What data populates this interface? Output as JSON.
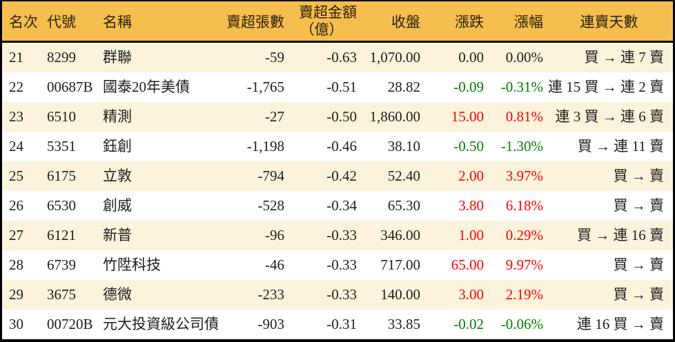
{
  "colors": {
    "header_bg": "#f6be4e",
    "row_odd": "#fcf3dc",
    "row_even": "#ffffff",
    "border": "#000000",
    "text": "#1d1d1d",
    "up_red": "#fe0000",
    "down_green": "#007d00"
  },
  "table": {
    "columns": {
      "rank": "名次",
      "code": "代號",
      "name": "名稱",
      "sell_lots": "賣超張數",
      "sell_amount_line1": "賣超金額",
      "sell_amount_line2": "（億）",
      "close": "收盤",
      "change": "漲跌",
      "change_pct": "漲幅",
      "streak": "連賣天數"
    },
    "rows": [
      {
        "rank": "21",
        "code": "8299",
        "name": "群聯",
        "sell_lots": "-59",
        "sell_amount": "-0.63",
        "close": "1,070.00",
        "change": "0.00",
        "change_pct": "0.00%",
        "trend": "flat",
        "streak": "買 → 連 7 賣"
      },
      {
        "rank": "22",
        "code": "00687B",
        "name": "國泰20年美債",
        "sell_lots": "-1,765",
        "sell_amount": "-0.51",
        "close": "28.82",
        "change": "-0.09",
        "change_pct": "-0.31%",
        "trend": "down",
        "streak": "連 15 買 → 連 2 賣"
      },
      {
        "rank": "23",
        "code": "6510",
        "name": "精測",
        "sell_lots": "-27",
        "sell_amount": "-0.50",
        "close": "1,860.00",
        "change": "15.00",
        "change_pct": "0.81%",
        "trend": "up",
        "streak": "連 3 買 → 連 6 賣"
      },
      {
        "rank": "24",
        "code": "5351",
        "name": "鈺創",
        "sell_lots": "-1,198",
        "sell_amount": "-0.46",
        "close": "38.10",
        "change": "-0.50",
        "change_pct": "-1.30%",
        "trend": "down",
        "streak": "買 → 連 11 賣"
      },
      {
        "rank": "25",
        "code": "6175",
        "name": "立敦",
        "sell_lots": "-794",
        "sell_amount": "-0.42",
        "close": "52.40",
        "change": "2.00",
        "change_pct": "3.97%",
        "trend": "up",
        "streak": "買 → 賣"
      },
      {
        "rank": "26",
        "code": "6530",
        "name": "創威",
        "sell_lots": "-528",
        "sell_amount": "-0.34",
        "close": "65.30",
        "change": "3.80",
        "change_pct": "6.18%",
        "trend": "up",
        "streak": "買 → 賣"
      },
      {
        "rank": "27",
        "code": "6121",
        "name": "新普",
        "sell_lots": "-96",
        "sell_amount": "-0.33",
        "close": "346.00",
        "change": "1.00",
        "change_pct": "0.29%",
        "trend": "up",
        "streak": "買 → 連 16 賣"
      },
      {
        "rank": "28",
        "code": "6739",
        "name": "竹陞科技",
        "sell_lots": "-46",
        "sell_amount": "-0.33",
        "close": "717.00",
        "change": "65.00",
        "change_pct": "9.97%",
        "trend": "up",
        "streak": "買 → 賣"
      },
      {
        "rank": "29",
        "code": "3675",
        "name": "德微",
        "sell_lots": "-233",
        "sell_amount": "-0.33",
        "close": "140.00",
        "change": "3.00",
        "change_pct": "2.19%",
        "trend": "up",
        "streak": "買 → 賣"
      },
      {
        "rank": "30",
        "code": "00720B",
        "name": "元大投資級公司債",
        "sell_lots": "-903",
        "sell_amount": "-0.31",
        "close": "33.85",
        "change": "-0.02",
        "change_pct": "-0.06%",
        "trend": "down",
        "streak": "連 16 買 → 賣"
      }
    ]
  }
}
